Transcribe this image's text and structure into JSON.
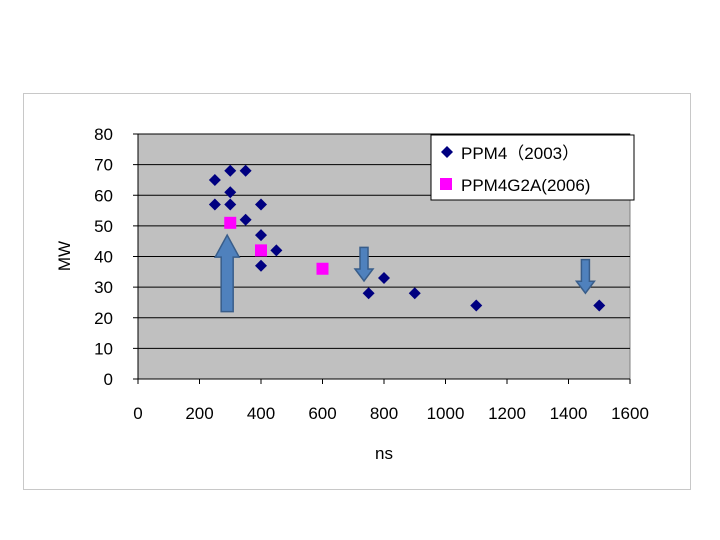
{
  "chart_data": {
    "type": "scatter",
    "title": "",
    "xlabel": "ns",
    "ylabel": "MW",
    "xlim": [
      0,
      1600
    ],
    "ylim": [
      0,
      80
    ],
    "x_ticks": [
      "0",
      "200",
      "400",
      "600",
      "800",
      "1000",
      "1200",
      "1400",
      "1600"
    ],
    "y_ticks": [
      "0",
      "10",
      "20",
      "30",
      "40",
      "50",
      "60",
      "70",
      "80"
    ],
    "grid": "horizontal",
    "legend_position": "top-right",
    "series": [
      {
        "name": "PPM4（2003）",
        "marker": "diamond",
        "color": "#000080",
        "points": [
          {
            "x": 250,
            "y": 65
          },
          {
            "x": 250,
            "y": 57
          },
          {
            "x": 300,
            "y": 68
          },
          {
            "x": 300,
            "y": 61
          },
          {
            "x": 300,
            "y": 57
          },
          {
            "x": 350,
            "y": 68
          },
          {
            "x": 350,
            "y": 52
          },
          {
            "x": 400,
            "y": 57
          },
          {
            "x": 400,
            "y": 47
          },
          {
            "x": 400,
            "y": 37
          },
          {
            "x": 450,
            "y": 42
          },
          {
            "x": 750,
            "y": 28
          },
          {
            "x": 800,
            "y": 33
          },
          {
            "x": 900,
            "y": 28
          },
          {
            "x": 1100,
            "y": 24
          },
          {
            "x": 1500,
            "y": 24
          }
        ]
      },
      {
        "name": "PPM4G2A(2006)",
        "marker": "square",
        "color": "#ff00ff",
        "points": [
          {
            "x": 300,
            "y": 51
          },
          {
            "x": 400,
            "y": 42
          },
          {
            "x": 600,
            "y": 36
          }
        ]
      }
    ],
    "annotations": [
      {
        "type": "arrow-up",
        "x": 290,
        "y_from": 22,
        "y_to": 47,
        "color": "#4f81bd"
      },
      {
        "type": "arrow-down",
        "x": 735,
        "y_from": 43,
        "y_to": 32,
        "color": "#4f81bd"
      },
      {
        "type": "arrow-down",
        "x": 1455,
        "y_from": 39,
        "y_to": 28,
        "color": "#4f81bd"
      }
    ],
    "colors": {
      "plot_background": "#c0c0c0",
      "gridline": "#000000",
      "legend_background": "#ffffff"
    }
  }
}
